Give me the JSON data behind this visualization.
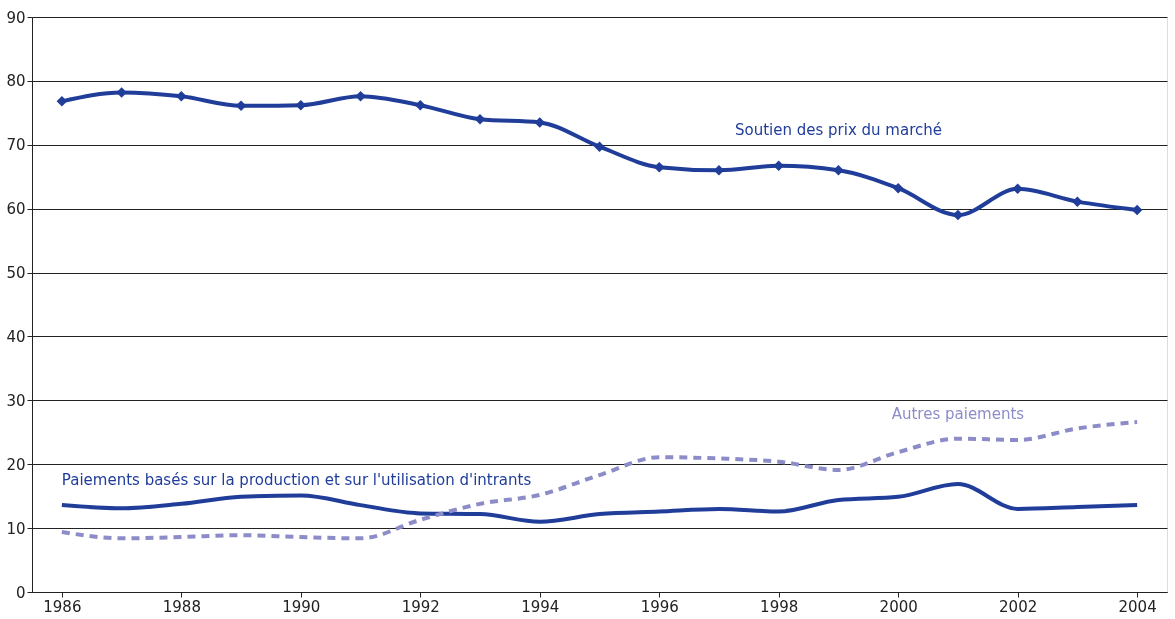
{
  "chart_data": {
    "type": "line",
    "x": [
      1986,
      1987,
      1988,
      1989,
      1990,
      1991,
      1992,
      1993,
      1994,
      1995,
      1996,
      1997,
      1998,
      1999,
      2000,
      2001,
      2002,
      2003,
      2004
    ],
    "xlim": [
      1985.5,
      2004.5
    ],
    "xticks": [
      1986,
      1988,
      1990,
      1992,
      1994,
      1996,
      1998,
      2000,
      2002,
      2004
    ],
    "ylim": [
      0,
      90
    ],
    "yticks": [
      0,
      10,
      20,
      30,
      40,
      50,
      60,
      70,
      80,
      90
    ],
    "grid": "y",
    "series": [
      {
        "name": "Soutien des prix du marché",
        "color": "#1f3d99",
        "marker": "diamond",
        "line_style": "solid",
        "values": [
          76.8,
          78.2,
          77.6,
          76.1,
          76.2,
          77.6,
          76.2,
          74.0,
          73.5,
          69.7,
          66.5,
          66.0,
          66.7,
          66.0,
          63.2,
          59.0,
          63.1,
          61.1,
          59.8
        ]
      },
      {
        "name": "Paiements basés sur la production et sur l'utilisation d'intrants",
        "color": "#1f3d99",
        "marker": "none",
        "line_style": "solid",
        "values": [
          13.6,
          13.1,
          13.8,
          14.9,
          15.1,
          13.6,
          12.3,
          12.2,
          11.0,
          12.2,
          12.6,
          13.0,
          12.6,
          14.4,
          14.9,
          16.9,
          13.0,
          13.3,
          13.6
        ]
      },
      {
        "name": "Autres paiements",
        "color": "#8c8cc8",
        "marker": "none",
        "line_style": "dashed",
        "values": [
          9.4,
          8.4,
          8.6,
          8.9,
          8.6,
          8.4,
          11.3,
          13.8,
          15.2,
          18.3,
          21.1,
          20.9,
          20.4,
          19.1,
          21.9,
          24.0,
          23.8,
          25.6,
          26.6
        ]
      }
    ]
  }
}
